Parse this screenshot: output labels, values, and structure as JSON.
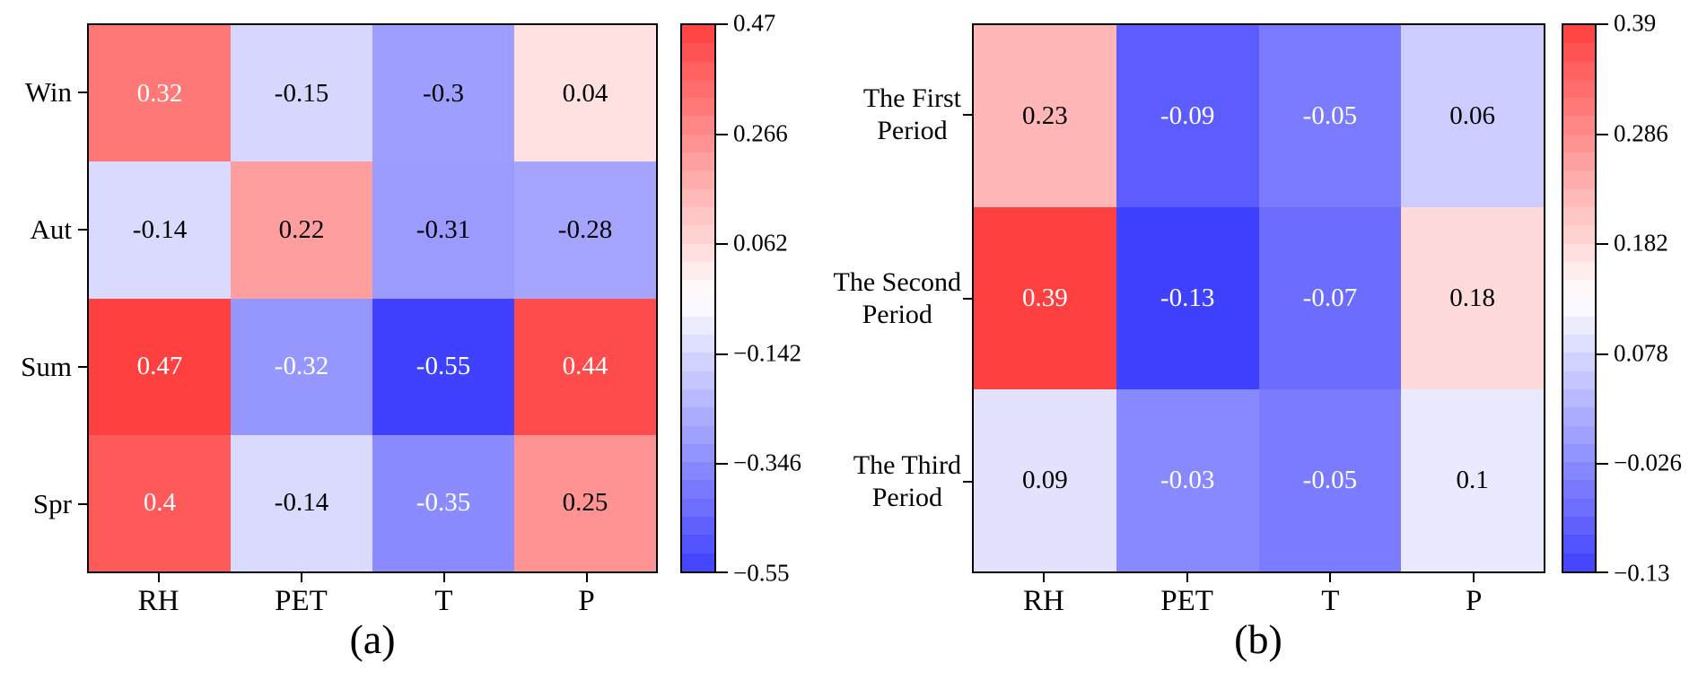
{
  "chart_data": [
    {
      "type": "heatmap",
      "panel_caption": "(a)",
      "x_tick_labels": [
        "RH",
        "PET",
        "T",
        "P"
      ],
      "y_tick_labels": [
        [
          "Win"
        ],
        [
          "Aut"
        ],
        [
          "Sum"
        ],
        [
          "Spr"
        ]
      ],
      "values": [
        [
          0.32,
          -0.15,
          -0.3,
          0.04
        ],
        [
          -0.14,
          0.22,
          -0.31,
          -0.28
        ],
        [
          0.47,
          -0.32,
          -0.55,
          0.44
        ],
        [
          0.4,
          -0.14,
          -0.35,
          0.25
        ]
      ],
      "cell_labels": [
        [
          "0.32",
          "-0.15",
          "-0.3",
          "0.04"
        ],
        [
          "-0.14",
          "0.22",
          "-0.31",
          "-0.28"
        ],
        [
          "0.47",
          "-0.32",
          "-0.55",
          "0.44"
        ],
        [
          "0.4",
          "-0.14",
          "-0.35",
          "0.25"
        ]
      ],
      "vmin": -0.55,
      "vmax": 0.47,
      "colorbar_tick_labels": [
        "0.47",
        "0.266",
        "0.062",
        "−0.142",
        "−0.346",
        "−0.55"
      ],
      "legend_position": "right-colorbar",
      "grid": false
    },
    {
      "type": "heatmap",
      "panel_caption": "(b)",
      "x_tick_labels": [
        "RH",
        "PET",
        "T",
        "P"
      ],
      "y_tick_labels": [
        [
          "The First",
          "Period"
        ],
        [
          "The Second",
          "Period"
        ],
        [
          "The Third",
          "Period"
        ]
      ],
      "values": [
        [
          0.23,
          -0.09,
          -0.05,
          0.06
        ],
        [
          0.39,
          -0.13,
          -0.07,
          0.18
        ],
        [
          0.09,
          -0.03,
          -0.05,
          0.1
        ]
      ],
      "cell_labels": [
        [
          "0.23",
          "-0.09",
          "-0.05",
          "0.06"
        ],
        [
          "0.39",
          "-0.13",
          "-0.07",
          "0.18"
        ],
        [
          "0.09",
          "-0.03",
          "-0.05",
          "0.1"
        ]
      ],
      "vmin": -0.13,
      "vmax": 0.39,
      "colorbar_tick_labels": [
        "0.39",
        "0.286",
        "0.182",
        "0.078",
        "−0.026",
        "−0.13"
      ],
      "legend_position": "right-colorbar",
      "grid": false
    }
  ],
  "colors": {
    "colormap_positive_end": "#ff4040",
    "colormap_negative_end": "#4040ff",
    "colormap_mid": "#ffffff",
    "axes_border": "#000000",
    "label_text": "#000000",
    "cell_text_light": "#ffffff",
    "cell_text_dark": "#000000",
    "background": "#ffffff"
  }
}
